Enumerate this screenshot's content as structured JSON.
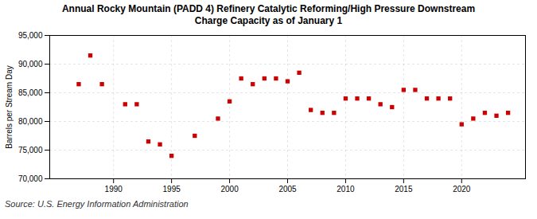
{
  "chart_data": {
    "type": "scatter",
    "title": "Annual Rocky Mountain (PADD 4) Refinery Catalytic Reforming/High Pressure Downstream\nCharge Capacity as of January 1",
    "ylabel": "Barrels per Stream Day",
    "source": "Source: U.S. Energy Information Administration",
    "x": [
      1987,
      1988,
      1989,
      1991,
      1992,
      1993,
      1994,
      1995,
      1997,
      1999,
      2000,
      2001,
      2002,
      2003,
      2004,
      2005,
      2006,
      2007,
      2008,
      2009,
      2010,
      2011,
      2012,
      2013,
      2014,
      2015,
      2016,
      2017,
      2018,
      2019,
      2020,
      2021,
      2022,
      2023,
      2024
    ],
    "values": [
      86500,
      91500,
      86500,
      83000,
      83000,
      76500,
      76000,
      74000,
      77500,
      80500,
      83500,
      87500,
      86500,
      87500,
      87500,
      87000,
      88500,
      82000,
      81500,
      81500,
      84000,
      84000,
      84000,
      83000,
      82500,
      85500,
      85500,
      84000,
      84000,
      84000,
      79500,
      80500,
      81500,
      81000,
      81500
    ],
    "color": "#cc0000",
    "marker": "square",
    "xlim": [
      1984.5,
      2025.5
    ],
    "xticks": [
      1990,
      1995,
      2000,
      2005,
      2010,
      2015,
      2020
    ],
    "ylim": [
      70000,
      95000
    ],
    "yticks": [
      {
        "value": 70000,
        "label": "70,000"
      },
      {
        "value": 75000,
        "label": "75,000"
      },
      {
        "value": 80000,
        "label": "80,000"
      },
      {
        "value": 85000,
        "label": "85,000"
      },
      {
        "value": 90000,
        "label": "90,000"
      },
      {
        "value": 95000,
        "label": "95,000"
      }
    ],
    "grid": true
  }
}
